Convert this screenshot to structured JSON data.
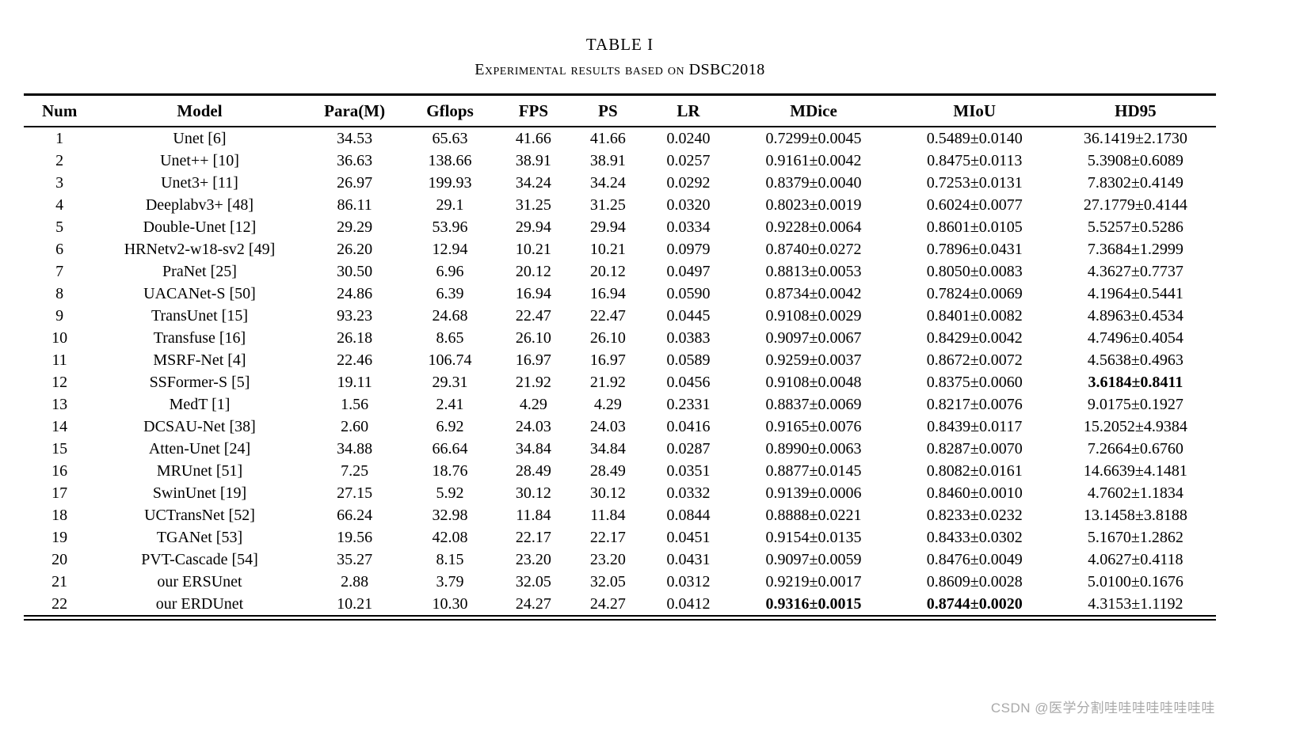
{
  "caption": {
    "title": "TABLE I",
    "subtitle": "Experimental results based on DSBC2018"
  },
  "watermark": "CSDN @医学分割哇哇哇哇哇哇哇哇",
  "table": {
    "columns": [
      "Num",
      "Model",
      "Para(M)",
      "Gflops",
      "FPS",
      "PS",
      "LR",
      "MDice",
      "MIoU",
      "HD95"
    ],
    "rows": [
      [
        "1",
        "Unet [6]",
        "34.53",
        "65.63",
        "41.66",
        "41.66",
        "0.0240",
        "0.7299±0.0045",
        "0.5489±0.0140",
        "36.1419±2.1730"
      ],
      [
        "2",
        "Unet++ [10]",
        "36.63",
        "138.66",
        "38.91",
        "38.91",
        "0.0257",
        "0.9161±0.0042",
        "0.8475±0.0113",
        "5.3908±0.6089"
      ],
      [
        "3",
        "Unet3+ [11]",
        "26.97",
        "199.93",
        "34.24",
        "34.24",
        "0.0292",
        "0.8379±0.0040",
        "0.7253±0.0131",
        "7.8302±0.4149"
      ],
      [
        "4",
        "Deeplabv3+ [48]",
        "86.11",
        "29.1",
        "31.25",
        "31.25",
        "0.0320",
        "0.8023±0.0019",
        "0.6024±0.0077",
        "27.1779±0.4144"
      ],
      [
        "5",
        "Double-Unet [12]",
        "29.29",
        "53.96",
        "29.94",
        "29.94",
        "0.0334",
        "0.9228±0.0064",
        "0.8601±0.0105",
        "5.5257±0.5286"
      ],
      [
        "6",
        "HRNetv2-w18-sv2 [49]",
        "26.20",
        "12.94",
        "10.21",
        "10.21",
        "0.0979",
        "0.8740±0.0272",
        "0.7896±0.0431",
        "7.3684±1.2999"
      ],
      [
        "7",
        "PraNet [25]",
        "30.50",
        "6.96",
        "20.12",
        "20.12",
        "0.0497",
        "0.8813±0.0053",
        "0.8050±0.0083",
        "4.3627±0.7737"
      ],
      [
        "8",
        "UACANet-S [50]",
        "24.86",
        "6.39",
        "16.94",
        "16.94",
        "0.0590",
        "0.8734±0.0042",
        "0.7824±0.0069",
        "4.1964±0.5441"
      ],
      [
        "9",
        "TransUnet [15]",
        "93.23",
        "24.68",
        "22.47",
        "22.47",
        "0.0445",
        "0.9108±0.0029",
        "0.8401±0.0082",
        "4.8963±0.4534"
      ],
      [
        "10",
        "Transfuse [16]",
        "26.18",
        "8.65",
        "26.10",
        "26.10",
        "0.0383",
        "0.9097±0.0067",
        "0.8429±0.0042",
        "4.7496±0.4054"
      ],
      [
        "11",
        "MSRF-Net [4]",
        "22.46",
        "106.74",
        "16.97",
        "16.97",
        "0.0589",
        "0.9259±0.0037",
        "0.8672±0.0072",
        "4.5638±0.4963"
      ],
      [
        "12",
        "SSFormer-S [5]",
        "19.11",
        "29.31",
        "21.92",
        "21.92",
        "0.0456",
        "0.9108±0.0048",
        "0.8375±0.0060",
        "3.6184±0.8411"
      ],
      [
        "13",
        "MedT [1]",
        "1.56",
        "2.41",
        "4.29",
        "4.29",
        "0.2331",
        "0.8837±0.0069",
        "0.8217±0.0076",
        "9.0175±0.1927"
      ],
      [
        "14",
        "DCSAU-Net [38]",
        "2.60",
        "6.92",
        "24.03",
        "24.03",
        "0.0416",
        "0.9165±0.0076",
        "0.8439±0.0117",
        "15.2052±4.9384"
      ],
      [
        "15",
        "Atten-Unet [24]",
        "34.88",
        "66.64",
        "34.84",
        "34.84",
        "0.0287",
        "0.8990±0.0063",
        "0.8287±0.0070",
        "7.2664±0.6760"
      ],
      [
        "16",
        "MRUnet [51]",
        "7.25",
        "18.76",
        "28.49",
        "28.49",
        "0.0351",
        "0.8877±0.0145",
        "0.8082±0.0161",
        "14.6639±4.1481"
      ],
      [
        "17",
        "SwinUnet [19]",
        "27.15",
        "5.92",
        "30.12",
        "30.12",
        "0.0332",
        "0.9139±0.0006",
        "0.8460±0.0010",
        "4.7602±1.1834"
      ],
      [
        "18",
        "UCTransNet [52]",
        "66.24",
        "32.98",
        "11.84",
        "11.84",
        "0.0844",
        "0.8888±0.0221",
        "0.8233±0.0232",
        "13.1458±3.8188"
      ],
      [
        "19",
        "TGANet [53]",
        "19.56",
        "42.08",
        "22.17",
        "22.17",
        "0.0451",
        "0.9154±0.0135",
        "0.8433±0.0302",
        "5.1670±1.2862"
      ],
      [
        "20",
        "PVT-Cascade [54]",
        "35.27",
        "8.15",
        "23.20",
        "23.20",
        "0.0431",
        "0.9097±0.0059",
        "0.8476±0.0049",
        "4.0627±0.4118"
      ],
      [
        "21",
        "our ERSUnet",
        "2.88",
        "3.79",
        "32.05",
        "32.05",
        "0.0312",
        "0.9219±0.0017",
        "0.8609±0.0028",
        "5.0100±0.1676"
      ],
      [
        "22",
        "our ERDUnet",
        "10.21",
        "10.30",
        "24.27",
        "24.27",
        "0.0412",
        "0.9316±0.0015",
        "0.8744±0.0020",
        "4.3153±1.1192"
      ]
    ],
    "bold_cells": [
      [
        11,
        9
      ],
      [
        21,
        7
      ],
      [
        21,
        8
      ]
    ]
  }
}
